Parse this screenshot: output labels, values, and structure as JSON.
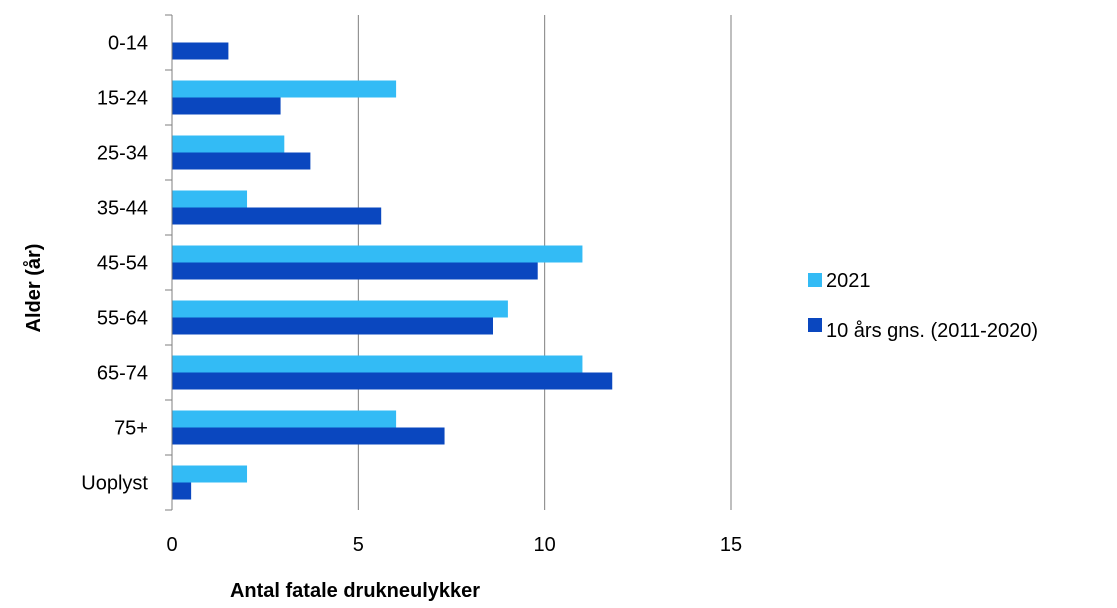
{
  "chart_data": {
    "type": "bar",
    "orientation": "horizontal",
    "categories": [
      "0-14",
      "15-24",
      "25-34",
      "35-44",
      "45-54",
      "55-64",
      "65-74",
      "75+",
      "Uoplyst"
    ],
    "series": [
      {
        "name": "2021",
        "color": "#33BBF5",
        "values": [
          0,
          6,
          3,
          2,
          11,
          9,
          11,
          6,
          2
        ]
      },
      {
        "name": "10 års gns. (2011-2020)",
        "color": "#0A47BF",
        "values": [
          1.5,
          2.9,
          3.7,
          5.6,
          9.8,
          8.6,
          11.8,
          7.3,
          0.5
        ]
      }
    ],
    "xlabel": "Antal fatale drukneulykker",
    "ylabel": "Alder (år)",
    "xlim": [
      0,
      15
    ],
    "xticks": [
      "0",
      "5",
      "10",
      "15"
    ],
    "grid": true,
    "legend_position": "right"
  }
}
